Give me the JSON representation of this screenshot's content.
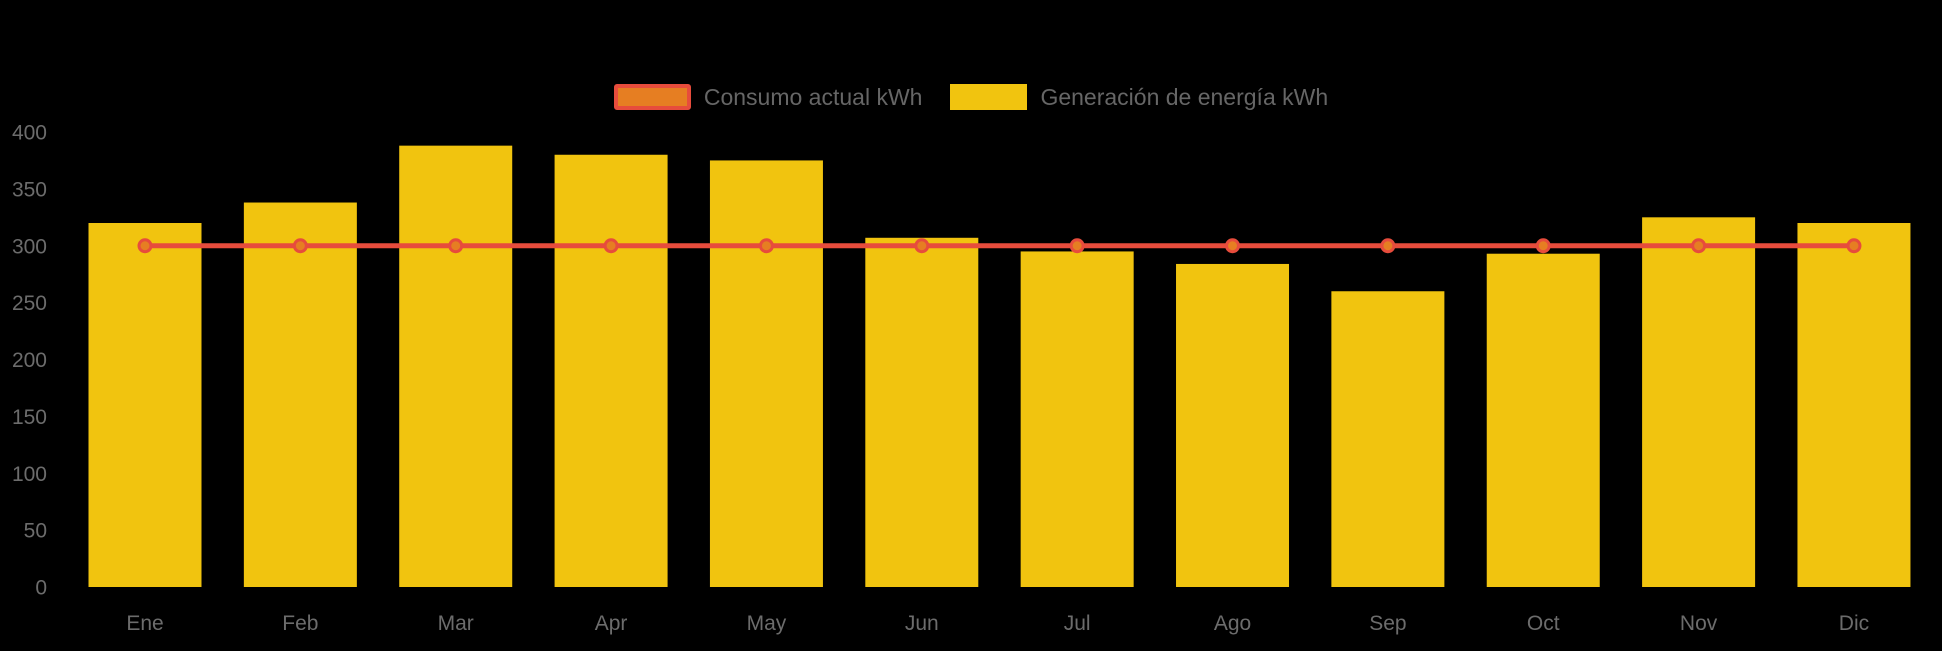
{
  "page": {
    "background": "#000000"
  },
  "legend": {
    "items": [
      {
        "label": "Consumo actual kWh",
        "swatch_fill": "#E67E22",
        "swatch_border": "#E74C3C",
        "series_type": "line"
      },
      {
        "label": "Generación de energía kWh",
        "swatch_fill": "#F1C40F",
        "swatch_border": "#F1C40F",
        "series_type": "bar"
      }
    ],
    "text_color": "#666666",
    "position": "top-center"
  },
  "chart_data": {
    "type": "bar",
    "categories": [
      "Ene",
      "Feb",
      "Mar",
      "Apr",
      "May",
      "Jun",
      "Jul",
      "Ago",
      "Sep",
      "Oct",
      "Nov",
      "Dic"
    ],
    "series": [
      {
        "name": "Consumo actual kWh",
        "type": "line",
        "color": "#E74C3C",
        "marker_fill": "#E67E22",
        "marker_stroke": "#E74C3C",
        "values": [
          300,
          300,
          300,
          300,
          300,
          300,
          300,
          300,
          300,
          300,
          300,
          300
        ]
      },
      {
        "name": "Generación de energía kWh",
        "type": "bar",
        "color": "#F1C40F",
        "values": [
          320,
          338,
          388,
          380,
          375,
          307,
          295,
          284,
          260,
          293,
          325,
          320
        ]
      }
    ],
    "title": "",
    "xlabel": "",
    "ylabel": "",
    "y_ticks": [
      0,
      50,
      100,
      150,
      200,
      250,
      300,
      350,
      400
    ],
    "ylim": [
      0,
      420
    ],
    "grid": false,
    "background": "transparent",
    "axis_text_color": "#6C6C6C",
    "legend_position": "top-center"
  }
}
